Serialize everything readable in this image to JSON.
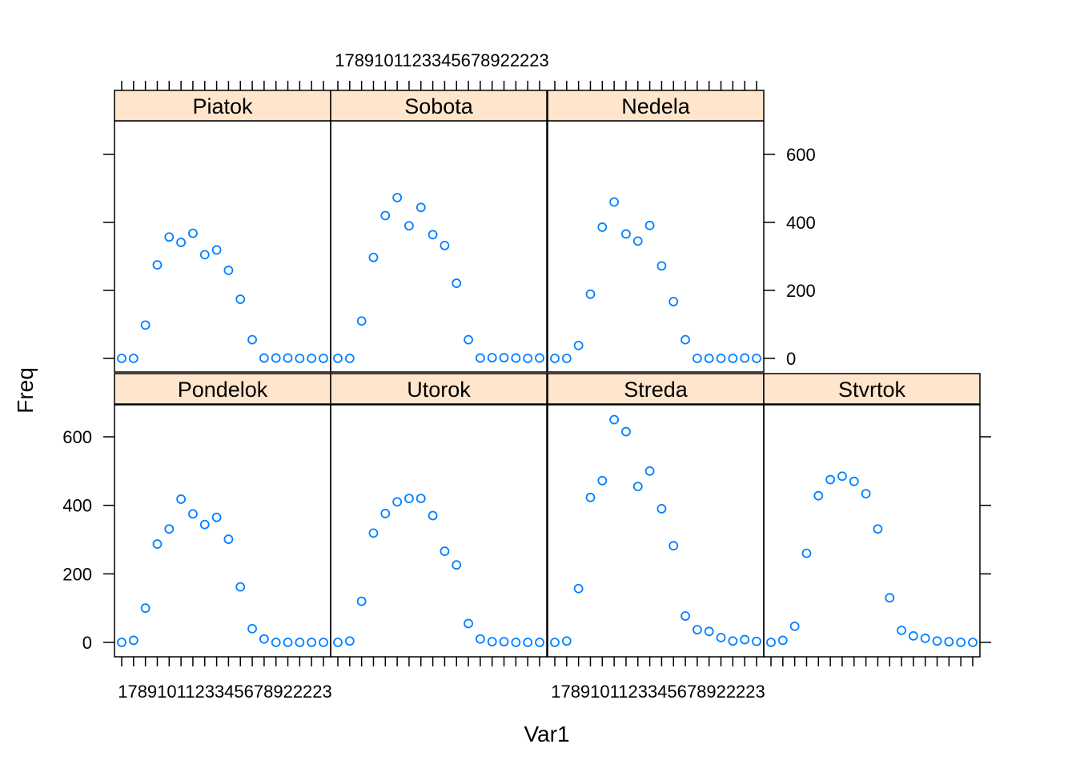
{
  "chart_data": {
    "type": "scatter",
    "layout": "trellis",
    "xlabel": "Var1",
    "ylabel": "Freq",
    "ylim": [
      0,
      700
    ],
    "y_ticks": [
      0,
      200,
      400,
      600
    ],
    "x_ticks": [
      "1",
      "7",
      "8",
      "9",
      "10",
      "11",
      "12",
      "13",
      "14",
      "15",
      "16",
      "17",
      "18",
      "19",
      "20",
      "21",
      "22",
      "23"
    ],
    "top_x_tick_text": "1789101123345678922223",
    "bottom_x_tick_text": "1789101123345678922223",
    "colors": {
      "point": "#0080ff",
      "strip": "#ffe5cc",
      "frame": "#000000"
    },
    "panels": [
      {
        "name": "Piatok",
        "values": [
          0,
          0,
          98,
          275,
          357,
          341,
          368,
          305,
          319,
          259,
          174,
          55,
          1,
          1,
          1,
          0,
          0,
          0
        ]
      },
      {
        "name": "Sobota",
        "values": [
          0,
          0,
          110,
          297,
          420,
          473,
          390,
          444,
          364,
          332,
          221,
          55,
          1,
          2,
          2,
          1,
          0,
          1
        ]
      },
      {
        "name": "Nedela",
        "values": [
          0,
          0,
          38,
          189,
          386,
          460,
          366,
          345,
          391,
          272,
          167,
          55,
          0,
          0,
          0,
          0,
          1,
          0
        ]
      },
      {
        "name": "Pondelok",
        "values": [
          0,
          6,
          100,
          287,
          331,
          418,
          375,
          344,
          365,
          301,
          162,
          40,
          10,
          0,
          0,
          0,
          0,
          0
        ]
      },
      {
        "name": "Utorok",
        "values": [
          0,
          4,
          120,
          319,
          376,
          410,
          420,
          420,
          370,
          266,
          226,
          55,
          10,
          2,
          2,
          0,
          0,
          0
        ]
      },
      {
        "name": "Streda",
        "values": [
          0,
          4,
          157,
          423,
          472,
          650,
          615,
          455,
          500,
          390,
          282,
          77,
          37,
          32,
          14,
          4,
          8,
          3
        ]
      },
      {
        "name": "Stvrtok",
        "values": [
          0,
          6,
          47,
          260,
          428,
          475,
          485,
          470,
          434,
          331,
          130,
          35,
          19,
          12,
          4,
          2,
          0,
          0
        ]
      }
    ]
  }
}
